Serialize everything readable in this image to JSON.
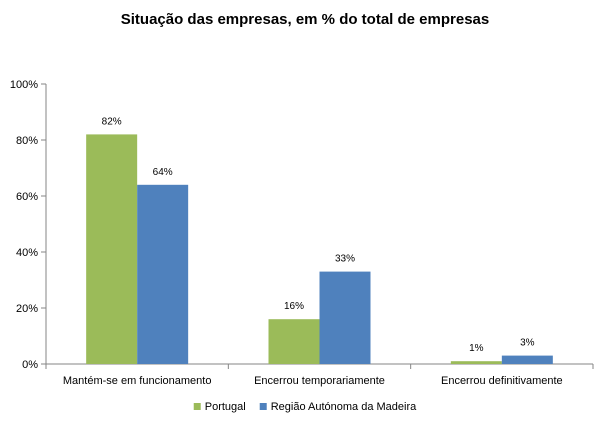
{
  "chart_data": {
    "type": "bar",
    "title": "Situação das empresas, em % do total de empresas",
    "xlabel": "",
    "ylabel": "",
    "categories": [
      "Mantém-se em funcionamento",
      "Encerrou temporariamente",
      "Encerrou definitivamente"
    ],
    "series": [
      {
        "name": "Portugal",
        "color": "#9BBB59",
        "values": [
          82,
          16,
          1
        ],
        "labels": [
          "82%",
          "16%",
          "1%"
        ]
      },
      {
        "name": "Região Autónoma da Madeira",
        "color": "#4F81BD",
        "values": [
          64,
          33,
          3
        ],
        "labels": [
          "64%",
          "33%",
          "3%"
        ]
      }
    ],
    "ylim": [
      0,
      100
    ],
    "yticks": [
      0,
      20,
      40,
      60,
      80,
      100
    ],
    "ytick_labels": [
      "0%",
      "20%",
      "40%",
      "60%",
      "80%",
      "100%"
    ],
    "grid": false,
    "legend_position": "bottom"
  }
}
